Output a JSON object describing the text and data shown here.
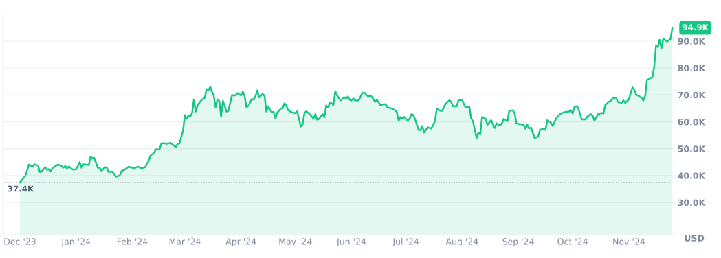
{
  "chart_data": {
    "type": "area",
    "x": [
      "2023-12-01",
      "2023-12-04",
      "2023-12-06",
      "2023-12-08",
      "2023-12-09",
      "2023-12-11",
      "2023-12-12",
      "2023-12-13",
      "2023-12-15",
      "2023-12-16",
      "2023-12-17",
      "2023-12-18",
      "2023-12-19",
      "2023-12-21",
      "2023-12-22",
      "2023-12-24",
      "2023-12-25",
      "2023-12-26",
      "2023-12-27",
      "2023-12-28",
      "2023-12-30",
      "2024-01-01",
      "2024-01-03",
      "2024-01-04",
      "2024-01-05",
      "2024-01-08",
      "2024-01-09",
      "2024-01-10",
      "2024-01-11",
      "2024-01-13",
      "2024-01-14",
      "2024-01-15",
      "2024-01-17",
      "2024-01-18",
      "2024-01-19",
      "2024-01-21",
      "2024-01-23",
      "2024-01-25",
      "2024-01-26",
      "2024-01-28",
      "2024-01-30",
      "2024-02-02",
      "2024-02-04",
      "2024-02-06",
      "2024-02-08",
      "2024-02-10",
      "2024-02-11",
      "2024-02-13",
      "2024-02-14",
      "2024-02-16",
      "2024-02-17",
      "2024-02-18",
      "2024-02-20",
      "2024-02-22",
      "2024-02-25",
      "2024-02-26",
      "2024-02-27",
      "2024-02-29",
      "2024-03-01",
      "2024-03-02",
      "2024-03-03",
      "2024-03-04",
      "2024-03-05",
      "2024-03-06",
      "2024-03-07",
      "2024-03-08",
      "2024-03-10",
      "2024-03-12",
      "2024-03-13",
      "2024-03-14",
      "2024-03-15",
      "2024-03-17",
      "2024-03-18",
      "2024-03-19",
      "2024-03-20",
      "2024-03-21",
      "2024-03-22",
      "2024-03-24",
      "2024-03-25",
      "2024-03-27",
      "2024-03-29",
      "2024-03-30",
      "2024-04-01",
      "2024-04-02",
      "2024-04-03",
      "2024-04-04",
      "2024-04-05",
      "2024-04-07",
      "2024-04-08",
      "2024-04-09",
      "2024-04-10",
      "2024-04-11",
      "2024-04-13",
      "2024-04-14",
      "2024-04-15",
      "2024-04-16",
      "2024-04-18",
      "2024-04-19",
      "2024-04-20",
      "2024-04-21",
      "2024-04-23",
      "2024-04-24",
      "2024-04-25",
      "2024-04-26",
      "2024-04-27",
      "2024-04-29",
      "2024-05-01",
      "2024-05-02",
      "2024-05-04",
      "2024-05-05",
      "2024-05-06",
      "2024-05-07",
      "2024-05-09",
      "2024-05-11",
      "2024-05-12",
      "2024-05-13",
      "2024-05-14",
      "2024-05-16",
      "2024-05-17",
      "2024-05-18",
      "2024-05-19",
      "2024-05-20",
      "2024-05-21",
      "2024-05-22",
      "2024-05-23",
      "2024-05-24",
      "2024-05-26",
      "2024-05-28",
      "2024-05-29",
      "2024-05-30",
      "2024-05-31",
      "2024-06-01",
      "2024-06-02",
      "2024-06-03",
      "2024-06-05",
      "2024-06-07",
      "2024-06-08",
      "2024-06-10",
      "2024-06-12",
      "2024-06-14",
      "2024-06-15",
      "2024-06-17",
      "2024-06-19",
      "2024-06-20",
      "2024-06-21",
      "2024-06-23",
      "2024-06-25",
      "2024-06-26",
      "2024-06-27",
      "2024-06-28",
      "2024-06-29",
      "2024-06-30",
      "2024-07-02",
      "2024-07-03",
      "2024-07-04",
      "2024-07-05",
      "2024-07-06",
      "2024-07-08",
      "2024-07-09",
      "2024-07-10",
      "2024-07-11",
      "2024-07-13",
      "2024-07-15",
      "2024-07-17",
      "2024-07-18",
      "2024-07-20",
      "2024-07-21",
      "2024-07-23",
      "2024-07-25",
      "2024-07-26",
      "2024-07-27",
      "2024-07-29",
      "2024-07-30",
      "2024-08-01",
      "2024-08-02",
      "2024-08-03",
      "2024-08-05",
      "2024-08-06",
      "2024-08-07",
      "2024-08-09",
      "2024-08-10",
      "2024-08-11",
      "2024-08-12",
      "2024-08-14",
      "2024-08-15",
      "2024-08-17",
      "2024-08-19",
      "2024-08-20",
      "2024-08-22",
      "2024-08-23",
      "2024-08-24",
      "2024-08-26",
      "2024-08-27",
      "2024-08-29",
      "2024-08-30",
      "2024-08-31",
      "2024-09-02",
      "2024-09-04",
      "2024-09-05",
      "2024-09-06",
      "2024-09-07",
      "2024-09-08",
      "2024-09-10",
      "2024-09-12",
      "2024-09-13",
      "2024-09-15",
      "2024-09-16",
      "2024-09-17",
      "2024-09-19",
      "2024-09-20",
      "2024-09-22",
      "2024-09-24",
      "2024-09-26",
      "2024-09-29",
      "2024-09-30",
      "2024-10-01",
      "2024-10-02",
      "2024-10-03",
      "2024-10-04",
      "2024-10-06",
      "2024-10-08",
      "2024-10-09",
      "2024-10-11",
      "2024-10-12",
      "2024-10-13",
      "2024-10-15",
      "2024-10-17",
      "2024-10-18",
      "2024-10-19",
      "2024-10-21",
      "2024-10-22",
      "2024-10-23",
      "2024-10-25",
      "2024-10-26",
      "2024-10-28",
      "2024-10-29",
      "2024-10-30",
      "2024-11-01",
      "2024-11-03",
      "2024-11-04",
      "2024-11-05",
      "2024-11-07",
      "2024-11-08",
      "2024-11-09",
      "2024-11-10",
      "2024-11-11",
      "2024-11-14",
      "2024-11-15",
      "2024-11-16",
      "2024-11-17",
      "2024-11-18",
      "2024-11-19",
      "2024-11-20",
      "2024-11-22",
      "2024-11-24",
      "2024-11-25"
    ],
    "series": [
      {
        "color": "#16c784",
        "values": [
          37.4,
          40.0,
          44.1,
          43.4,
          44.2,
          43.7,
          41.3,
          41.5,
          43.1,
          42.1,
          42.4,
          41.5,
          42.8,
          43.7,
          44.1,
          43.6,
          42.9,
          43.6,
          42.6,
          43.4,
          42.3,
          42.3,
          45.0,
          42.9,
          44.2,
          43.9,
          47.1,
          46.3,
          46.6,
          42.9,
          42.9,
          41.8,
          43.1,
          42.9,
          41.3,
          41.5,
          39.6,
          40.0,
          41.6,
          42.3,
          43.3,
          42.7,
          43.3,
          42.7,
          43.1,
          45.5,
          47.4,
          48.4,
          49.8,
          49.7,
          51.9,
          52.1,
          51.8,
          52.2,
          50.6,
          51.8,
          51.9,
          56.7,
          62.5,
          61.1,
          62.4,
          62.0,
          63.2,
          68.3,
          63.8,
          66.1,
          68.0,
          69.0,
          72.2,
          71.7,
          73.0,
          69.6,
          65.3,
          68.3,
          67.8,
          61.9,
          67.8,
          63.8,
          64.0,
          69.9,
          69.8,
          70.7,
          69.8,
          71.2,
          69.6,
          65.4,
          65.9,
          68.5,
          68.2,
          69.6,
          71.7,
          69.1,
          70.4,
          69.6,
          63.8,
          65.6,
          63.5,
          63.7,
          61.2,
          63.5,
          64.9,
          65.1,
          66.9,
          66.1,
          64.3,
          63.5,
          63.2,
          63.9,
          58.2,
          59.0,
          63.3,
          63.9,
          62.9,
          61.1,
          62.9,
          60.8,
          61.0,
          62.9,
          61.7,
          66.1,
          65.3,
          67.0,
          66.9,
          66.2,
          71.4,
          69.8,
          68.0,
          69.1,
          68.6,
          69.4,
          68.2,
          67.9,
          68.7,
          67.9,
          68.0,
          70.8,
          70.9,
          69.5,
          69.5,
          67.4,
          68.2,
          66.2,
          66.6,
          66.3,
          65.3,
          65.0,
          64.3,
          63.6,
          60.4,
          61.8,
          61.1,
          61.8,
          60.4,
          61.1,
          62.8,
          62.6,
          61.1,
          57.0,
          56.9,
          58.4,
          56.0,
          58.0,
          57.5,
          60.2,
          64.8,
          64.1,
          64.1,
          66.8,
          68.0,
          67.4,
          65.8,
          65.8,
          68.0,
          68.2,
          66.6,
          65.3,
          65.6,
          61.3,
          60.2,
          54.0,
          56.0,
          55.2,
          61.8,
          61.1,
          58.9,
          60.6,
          57.7,
          59.4,
          58.7,
          59.5,
          61.1,
          60.2,
          64.1,
          64.3,
          63.1,
          59.4,
          59.1,
          58.9,
          57.4,
          58.9,
          57.5,
          57.9,
          54.0,
          54.5,
          57.0,
          57.5,
          57.0,
          60.6,
          59.7,
          58.4,
          61.4,
          62.9,
          63.5,
          63.8,
          64.3,
          63.1,
          65.5,
          65.8,
          65.3,
          60.9,
          60.9,
          61.9,
          62.9,
          62.3,
          60.4,
          62.8,
          63.3,
          63.1,
          66.2,
          67.5,
          67.7,
          68.7,
          69.0,
          67.3,
          67.1,
          68.0,
          67.0,
          68.4,
          72.8,
          72.1,
          70.1,
          69.4,
          69.0,
          67.9,
          69.6,
          75.6,
          76.6,
          80.4,
          88.5,
          87.8,
          90.5,
          87.3,
          91.0,
          89.8,
          90.8,
          94.9
        ]
      }
    ],
    "xlim": [
      "2023-11-22",
      "2024-11-26"
    ],
    "xticks": [
      {
        "value": "2023-12-01",
        "label": "Dec '23"
      },
      {
        "value": "2024-01-01",
        "label": "Jan '24"
      },
      {
        "value": "2024-02-01",
        "label": "Feb '24"
      },
      {
        "value": "2024-03-01",
        "label": "Mar '24"
      },
      {
        "value": "2024-04-01",
        "label": "Apr '24"
      },
      {
        "value": "2024-05-01",
        "label": "May '24"
      },
      {
        "value": "2024-06-01",
        "label": "Jun '24"
      },
      {
        "value": "2024-07-01",
        "label": "Jul '24"
      },
      {
        "value": "2024-08-01",
        "label": "Aug '24"
      },
      {
        "value": "2024-09-01",
        "label": "Sep '24"
      },
      {
        "value": "2024-10-01",
        "label": "Oct '24"
      },
      {
        "value": "2024-11-01",
        "label": "Nov '24"
      }
    ],
    "ylim": [
      18,
      100
    ],
    "yticks": [
      {
        "value": 30,
        "label": "30.0K"
      },
      {
        "value": 40,
        "label": "40.0K"
      },
      {
        "value": 50,
        "label": "50.0K"
      },
      {
        "value": 60,
        "label": "60.0K"
      },
      {
        "value": 70,
        "label": "70.0K"
      },
      {
        "value": 80,
        "label": "80.0K"
      },
      {
        "value": 90,
        "label": "90.0K"
      }
    ],
    "ylabel": "USD",
    "grid": "y",
    "ref_lines": [
      {
        "axis": "y",
        "value": 37.4,
        "label": "37.4K",
        "color": "#8a8f9c",
        "line_style": "dotted"
      }
    ],
    "annotations": [
      {
        "text": "94.9K",
        "x": "2024-11-25",
        "y": 94.9
      }
    ]
  }
}
